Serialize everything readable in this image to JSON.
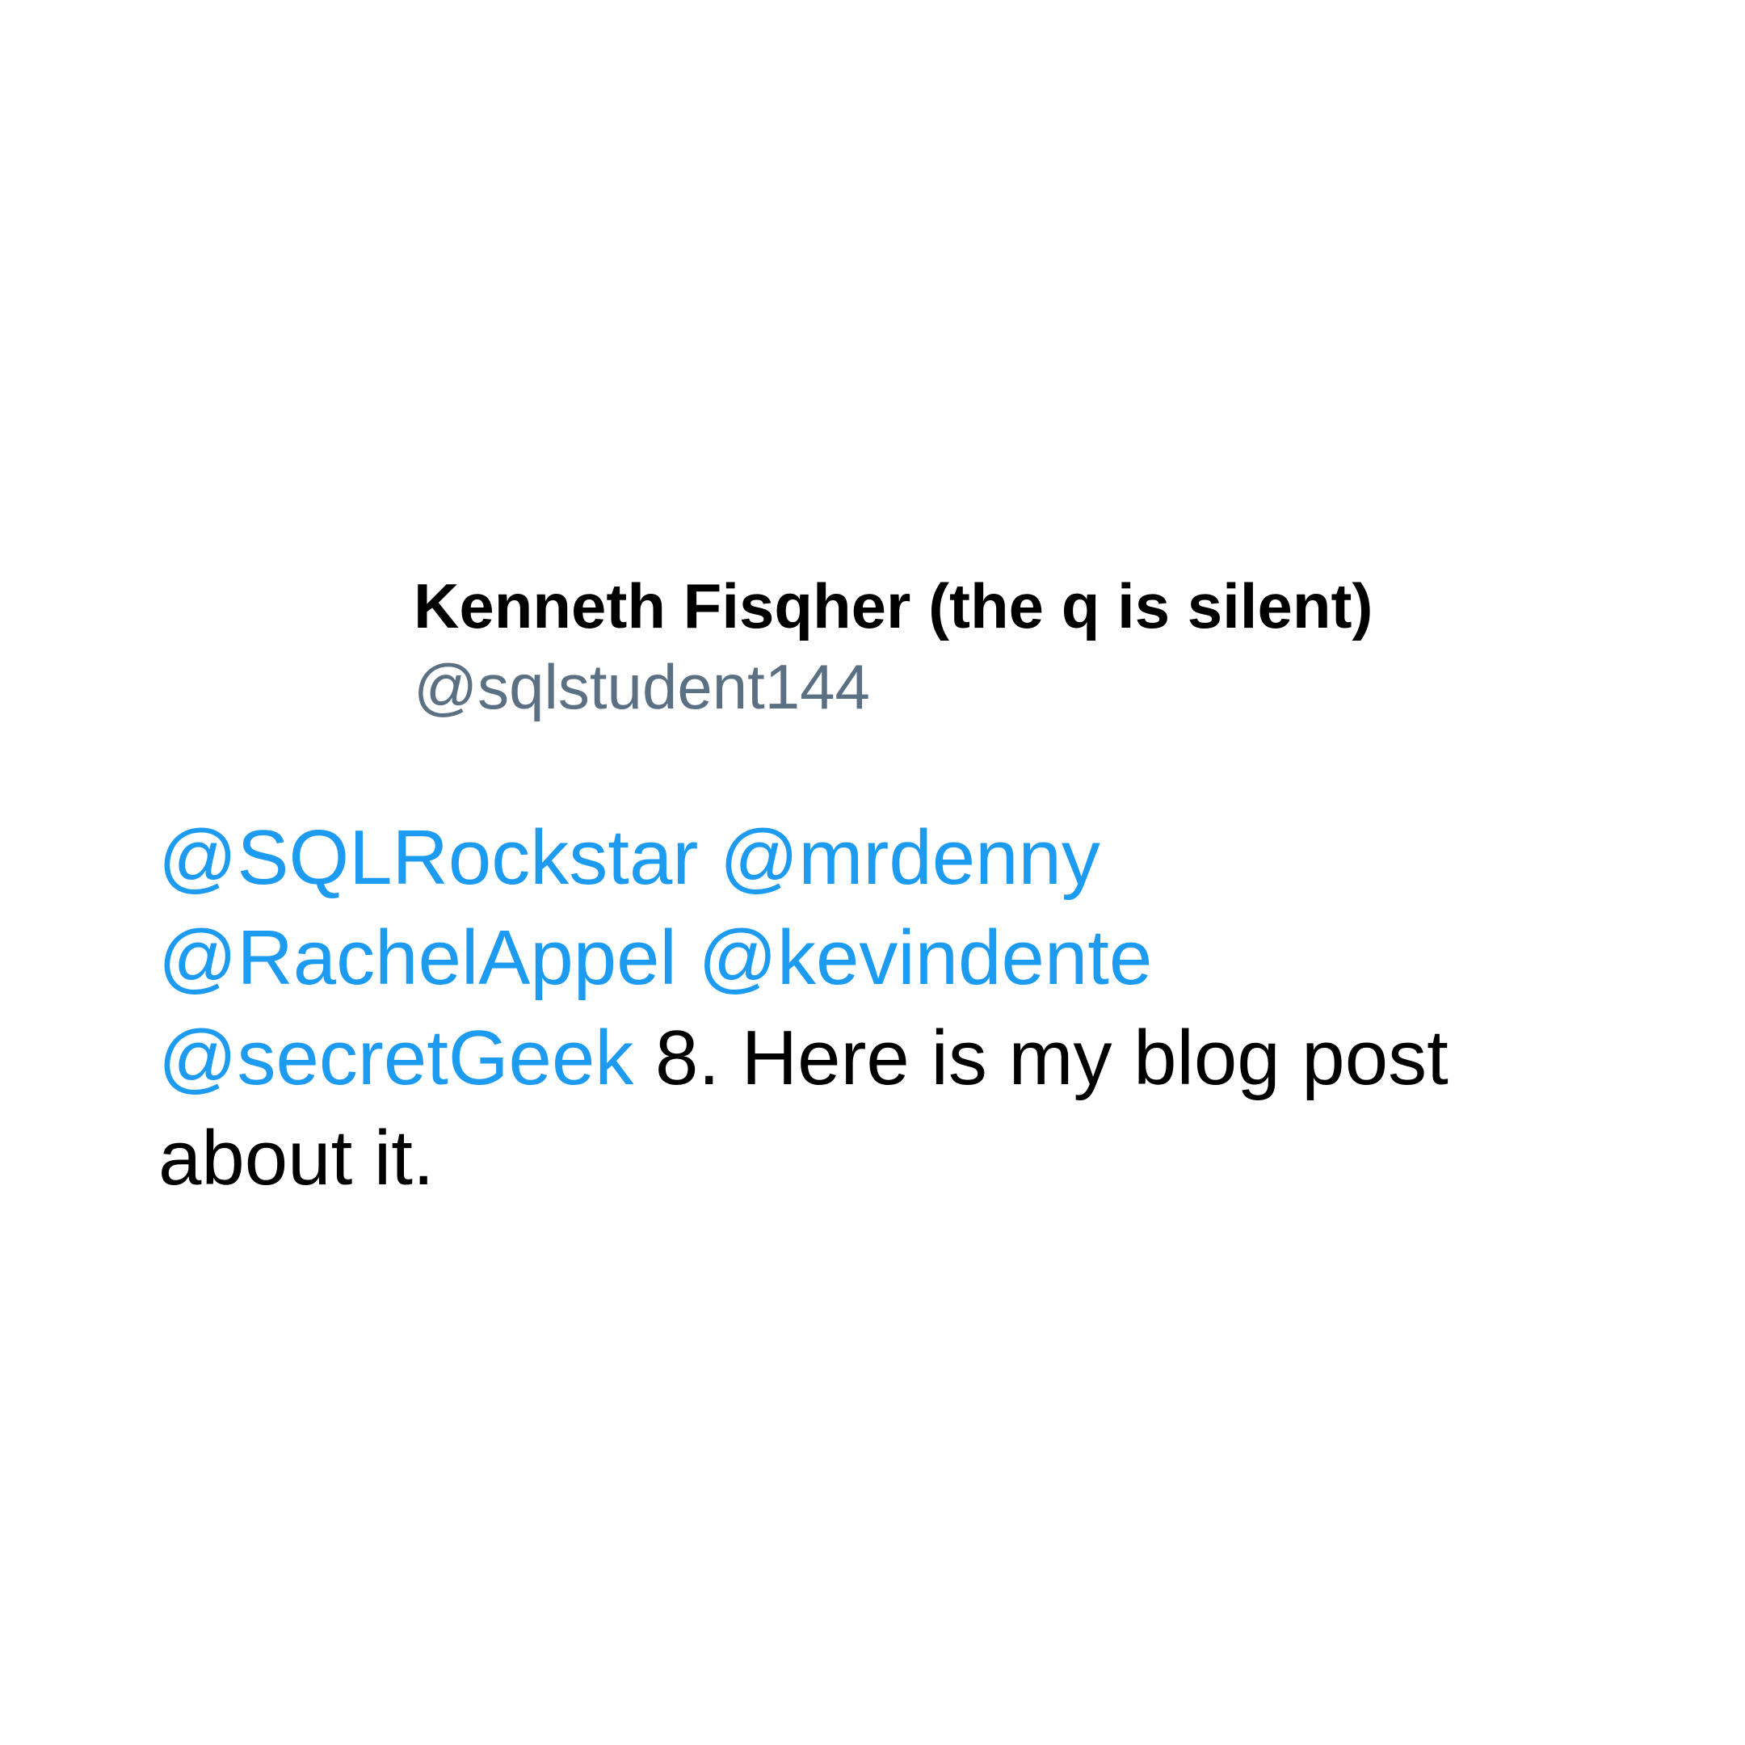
{
  "tweet": {
    "author": {
      "display_name": "Kenneth Fisqher (the q is silent)",
      "handle": "@sqlstudent144"
    },
    "mentions": [
      "@SQLRockstar",
      "@mrdenny",
      "@RachelAppel",
      "@kevindente",
      "@secretGeek"
    ],
    "text": "8. Here is my blog post about it.",
    "colors": {
      "mention": "#1d9bf0",
      "handle": "#5b7083",
      "text": "#000000",
      "background": "#ffffff"
    }
  }
}
